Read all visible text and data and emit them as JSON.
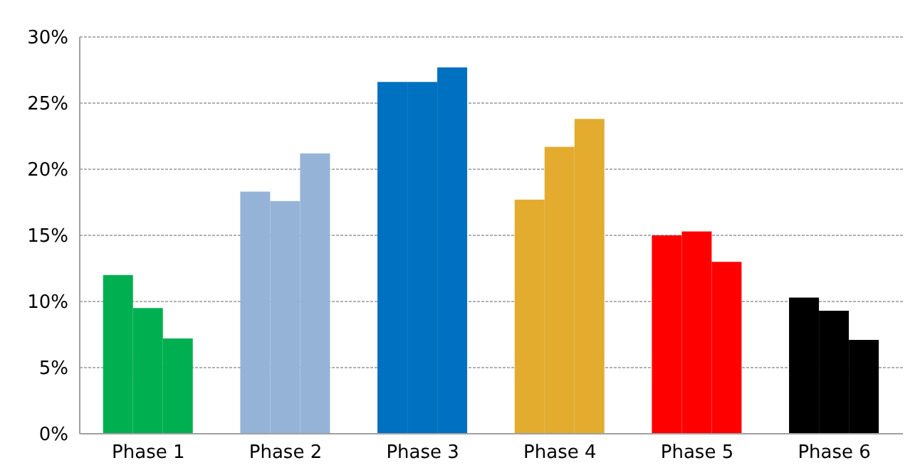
{
  "chart_data": {
    "type": "bar",
    "categories": [
      "Phase 1",
      "Phase 2",
      "Phase 3",
      "Phase 4",
      "Phase 5",
      "Phase 6"
    ],
    "series": [
      {
        "values": [
          12.0,
          18.3,
          26.6,
          17.7,
          15.0,
          10.3
        ],
        "colors": [
          "#00b050",
          "#95b3d7",
          "#0070c0",
          "#e3ac2f",
          "#ff0000",
          "#000000"
        ]
      },
      {
        "values": [
          9.5,
          17.6,
          26.6,
          21.7,
          15.3,
          9.3
        ],
        "colors": [
          "#00b050",
          "#95b3d7",
          "#0070c0",
          "#e3ac2f",
          "#ff0000",
          "#000000"
        ]
      },
      {
        "values": [
          7.2,
          21.2,
          27.7,
          23.8,
          13.0,
          7.1
        ],
        "colors": [
          "#00b050",
          "#95b3d7",
          "#0070c0",
          "#e3ac2f",
          "#ff0000",
          "#000000"
        ]
      }
    ],
    "ylim": [
      0,
      30
    ],
    "yticks": [
      {
        "value": 0,
        "label": "0%"
      },
      {
        "value": 5,
        "label": "5%"
      },
      {
        "value": 10,
        "label": "10%"
      },
      {
        "value": 15,
        "label": "15%"
      },
      {
        "value": 20,
        "label": "20%"
      },
      {
        "value": 25,
        "label": "25%"
      },
      {
        "value": 30,
        "label": "30%"
      }
    ],
    "grid": "y"
  }
}
